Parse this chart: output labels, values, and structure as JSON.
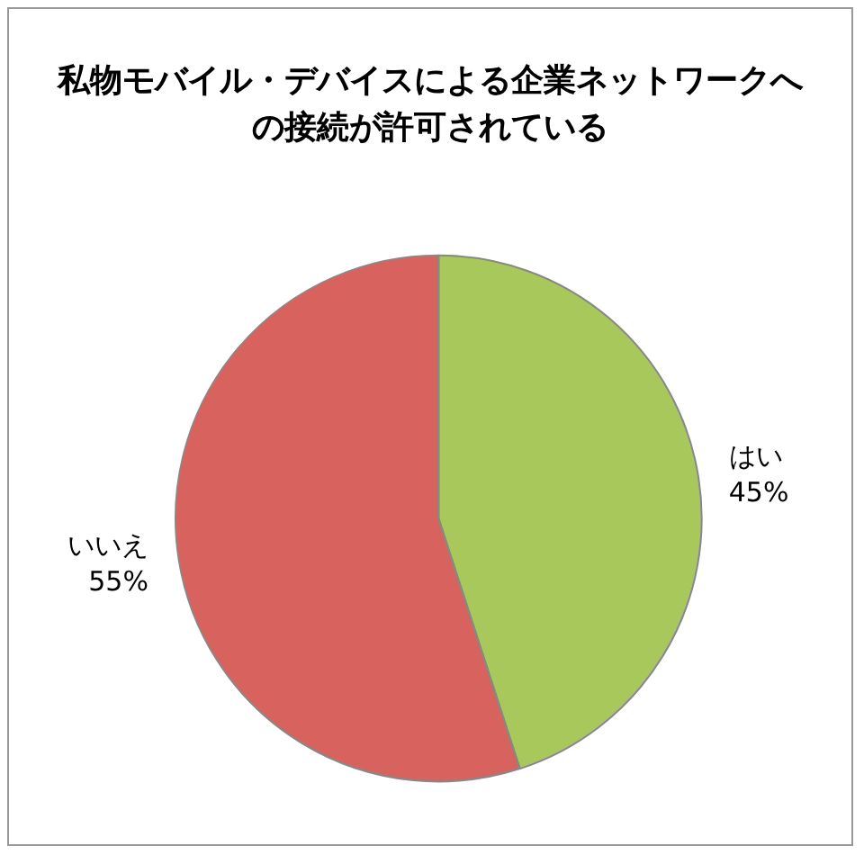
{
  "chart_data": {
    "type": "pie",
    "title": "私物モバイル・デバイスによる企業ネットワークへの接続が許可されている",
    "categories": [
      "はい",
      "いいえ"
    ],
    "values": [
      45,
      55
    ],
    "value_labels": [
      "45%",
      "55%"
    ],
    "colors": [
      "#a8c85c",
      "#d8625e"
    ],
    "legend": false
  }
}
